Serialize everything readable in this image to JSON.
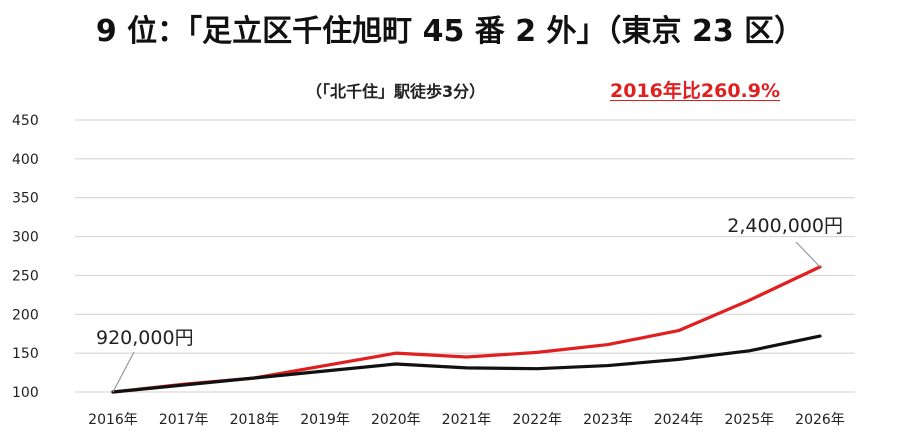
{
  "header": {
    "title": "9 位：「足立区千住旭町 45 番 2 外」（東京 23 区）",
    "subtitle": "（「北千住」駅徒歩3分）",
    "highlight": "2016年比260.9%",
    "highlight_color": "#e02020"
  },
  "chart_data": {
    "type": "line",
    "categories": [
      "2016年",
      "2017年",
      "2018年",
      "2019年",
      "2020年",
      "2021年",
      "2022年",
      "2023年",
      "2024年",
      "2025年",
      "2026年"
    ],
    "series": [
      {
        "color": "#e02020",
        "values": [
          100,
          110,
          118,
          134,
          150,
          145,
          151,
          161,
          179,
          218,
          261
        ]
      },
      {
        "color": "#111111",
        "values": [
          100,
          109,
          118,
          127,
          136,
          131,
          130,
          134,
          142,
          153,
          172
        ]
      }
    ],
    "ylim": [
      100,
      450
    ],
    "yticks": [
      100,
      150,
      200,
      250,
      300,
      350,
      400,
      450
    ],
    "grid": true,
    "annotations": [
      {
        "text": "920,000円",
        "category": "2016年",
        "value": 100
      },
      {
        "text": "2,400,000円",
        "category": "2026年",
        "value": 261
      }
    ],
    "xlabel": "",
    "ylabel": ""
  }
}
